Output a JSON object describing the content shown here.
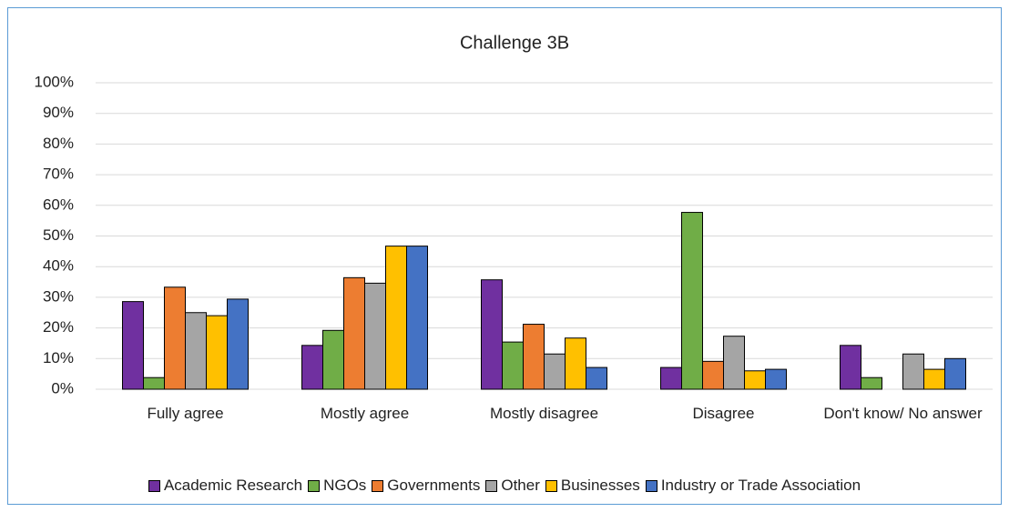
{
  "chart_data": {
    "type": "bar",
    "title": "Challenge 3B",
    "categories": [
      "Fully agree",
      "Mostly agree",
      "Mostly disagree",
      "Disagree",
      "Don't know/ No answer"
    ],
    "series": [
      {
        "name": "Academic Research",
        "color": "#7030a0",
        "values": [
          28.6,
          14.3,
          35.7,
          7.1,
          14.3
        ]
      },
      {
        "name": "NGOs",
        "color": "#70ad47",
        "values": [
          3.8,
          19.2,
          15.4,
          57.7,
          3.8
        ]
      },
      {
        "name": "Governments",
        "color": "#ed7d31",
        "values": [
          33.3,
          36.4,
          21.2,
          9.1,
          0
        ]
      },
      {
        "name": "Other",
        "color": "#a5a5a5",
        "values": [
          25,
          34.6,
          11.5,
          17.3,
          11.5
        ]
      },
      {
        "name": "Businesses",
        "color": "#ffc000",
        "values": [
          24,
          46.7,
          16.7,
          6,
          6.5
        ]
      },
      {
        "name": "Industry or Trade Association",
        "color": "#4472c4",
        "values": [
          29.4,
          46.7,
          7.1,
          6.5,
          10
        ]
      }
    ],
    "ylim": [
      0,
      100
    ],
    "yticks": [
      {
        "value": 0,
        "label": "0%"
      },
      {
        "value": 10,
        "label": "10%"
      },
      {
        "value": 20,
        "label": "20%"
      },
      {
        "value": 30,
        "label": "30%"
      },
      {
        "value": 40,
        "label": "40%"
      },
      {
        "value": 50,
        "label": "50%"
      },
      {
        "value": 60,
        "label": "60%"
      },
      {
        "value": 70,
        "label": "70%"
      },
      {
        "value": 80,
        "label": "80%"
      },
      {
        "value": 90,
        "label": "90%"
      },
      {
        "value": 100,
        "label": "100%"
      }
    ],
    "grid": true,
    "legend": "bottom"
  }
}
